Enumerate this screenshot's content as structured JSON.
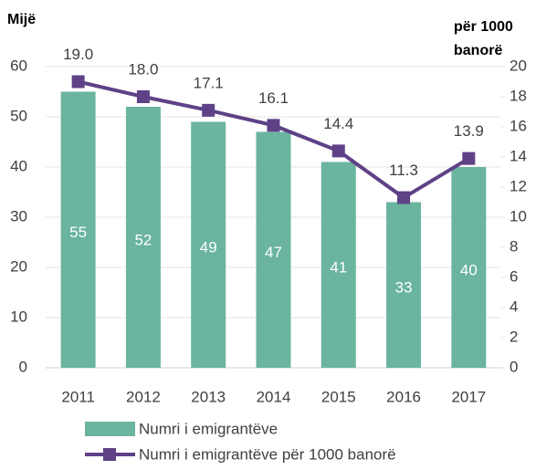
{
  "chart_data": {
    "type": "bar_line",
    "y_label": "Mijë",
    "y2_label": [
      "për 1000",
      "banorë"
    ],
    "categories": [
      "2011",
      "2012",
      "2013",
      "2014",
      "2015",
      "2016",
      "2017"
    ],
    "series": [
      {
        "name": "Numri i emigrantëve",
        "type": "bar",
        "color": "#6ab4a0",
        "values": [
          55,
          52,
          49,
          47,
          41,
          33,
          40
        ]
      },
      {
        "name": "Numri i emigrantëve për 1000 banorë",
        "type": "line",
        "axis": "y2",
        "color": "#5e4187",
        "values": [
          19.0,
          18.0,
          17.1,
          16.1,
          14.4,
          11.3,
          13.9
        ],
        "value_labels": [
          "19.0",
          "18.0",
          "17.1",
          "16.1",
          "14.4",
          "11.3",
          "13.9"
        ]
      }
    ],
    "ylim": [
      0,
      60
    ],
    "yticks": [
      0,
      10,
      20,
      30,
      40,
      50,
      60
    ],
    "y2lim": [
      0,
      20
    ],
    "y2ticks": [
      0,
      2,
      4,
      6,
      8,
      10,
      12,
      14,
      16,
      18,
      20
    ],
    "grid": true,
    "legend": "bottom"
  }
}
